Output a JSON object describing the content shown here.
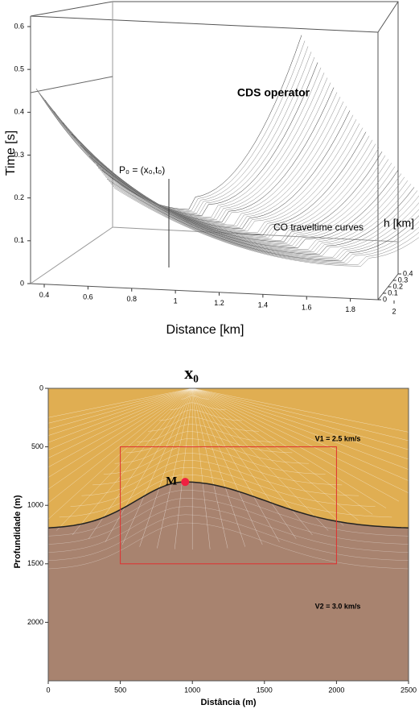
{
  "top_panel": {
    "y_label": "Time [s]",
    "x_label": "Distance [km]",
    "z_label": "h [km]",
    "ylim": [
      0,
      0.6
    ],
    "yticks": [
      0,
      0.1,
      0.2,
      0.3,
      0.4,
      0.5,
      0.6
    ],
    "xlim": [
      0.4,
      2
    ],
    "xticks": [
      0.4,
      0.6,
      0.8,
      1,
      1.2,
      1.4,
      1.6,
      1.8,
      2
    ],
    "zlim": [
      0,
      0.4
    ],
    "zticks": [
      0,
      0.1,
      0.2,
      0.3,
      0.4
    ],
    "annotations": {
      "cds": "CDS operator",
      "p0": "P₀ = (x₀,t₀)",
      "co": "CO traveltime curves"
    }
  },
  "bottom_panel": {
    "y_label": "Profundidade (m)",
    "x_label": "Distância (m)",
    "xlim": [
      0,
      2500
    ],
    "xticks": [
      0,
      500,
      1000,
      1500,
      2000,
      2500
    ],
    "ylim": [
      0,
      2500
    ],
    "yticks": [
      0,
      500,
      1000,
      1500,
      2000
    ],
    "labels": {
      "x0": "x₀",
      "m": "M",
      "v1": "V1 = 2.5 km/s",
      "v2": "V2 = 3.0 km/s"
    },
    "box": {
      "x": [
        500,
        2000
      ],
      "y": [
        500,
        1500
      ]
    },
    "point_m": {
      "x": 950,
      "y": 800
    }
  }
}
